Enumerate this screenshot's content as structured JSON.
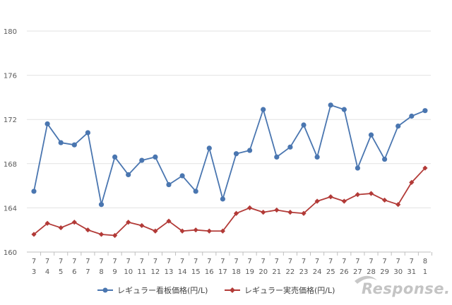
{
  "chart_data": {
    "type": "line",
    "x": [
      [
        "7",
        "3"
      ],
      [
        "7",
        "4"
      ],
      [
        "7",
        "5"
      ],
      [
        "7",
        "6"
      ],
      [
        "7",
        "7"
      ],
      [
        "7",
        "8"
      ],
      [
        "7",
        "9"
      ],
      [
        "7",
        "10"
      ],
      [
        "7",
        "11"
      ],
      [
        "7",
        "12"
      ],
      [
        "7",
        "13"
      ],
      [
        "7",
        "14"
      ],
      [
        "7",
        "15"
      ],
      [
        "7",
        "16"
      ],
      [
        "7",
        "17"
      ],
      [
        "7",
        "18"
      ],
      [
        "7",
        "19"
      ],
      [
        "7",
        "20"
      ],
      [
        "7",
        "21"
      ],
      [
        "7",
        "22"
      ],
      [
        "7",
        "23"
      ],
      [
        "7",
        "24"
      ],
      [
        "7",
        "25"
      ],
      [
        "7",
        "26"
      ],
      [
        "7",
        "27"
      ],
      [
        "7",
        "28"
      ],
      [
        "7",
        "29"
      ],
      [
        "7",
        "30"
      ],
      [
        "7",
        "31"
      ],
      [
        "8",
        "1"
      ]
    ],
    "series": [
      {
        "name": "レギュラー看板価格(円/L)",
        "color": "#4a76b0",
        "marker": "circle",
        "values": [
          165.5,
          171.6,
          169.9,
          169.7,
          170.8,
          164.3,
          168.6,
          167.0,
          168.3,
          168.6,
          166.1,
          166.9,
          165.5,
          169.4,
          164.8,
          168.9,
          169.2,
          172.9,
          168.6,
          169.5,
          171.5,
          168.6,
          173.3,
          172.9,
          167.6,
          170.6,
          168.4,
          171.4,
          172.3,
          172.8
        ]
      },
      {
        "name": "レギュラー実売価格(円/L)",
        "color": "#b23a37",
        "marker": "diamond",
        "values": [
          161.6,
          162.6,
          162.2,
          162.7,
          162.0,
          161.6,
          161.5,
          162.7,
          162.4,
          161.9,
          162.8,
          161.9,
          162.0,
          161.9,
          161.9,
          163.5,
          164.0,
          163.6,
          163.8,
          163.6,
          163.5,
          164.6,
          165.0,
          164.6,
          165.2,
          165.3,
          164.7,
          164.3,
          166.3,
          167.6
        ]
      }
    ],
    "yticks": [
      "160",
      "164",
      "168",
      "172",
      "176",
      "180"
    ],
    "ylim": [
      160,
      180
    ],
    "grid": true,
    "legend": "bottom"
  },
  "watermark": "Response."
}
